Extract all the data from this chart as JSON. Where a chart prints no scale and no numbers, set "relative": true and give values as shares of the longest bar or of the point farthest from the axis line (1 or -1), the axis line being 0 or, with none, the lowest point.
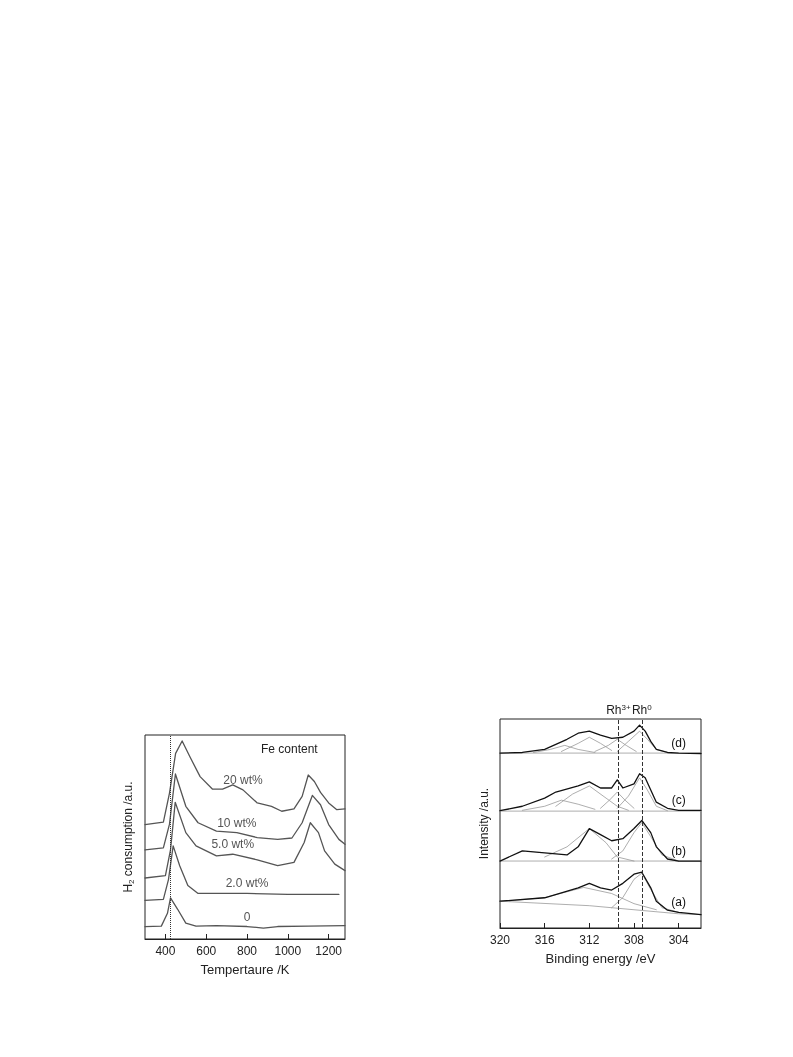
{
  "chart_data": [
    {
      "type": "line",
      "relative": true,
      "xlabel": "Tempertaure /K",
      "ylabel": "H$_{2}$ consumption /a.u.",
      "xlim": [
        300,
        1280
      ],
      "xticks": [
        400,
        600,
        800,
        1000,
        1200
      ],
      "annotations": [
        "Fe content"
      ],
      "ref_lines": [
        {
          "axis": "x",
          "value": 425,
          "line_style": "dotted"
        }
      ],
      "series": [
        {
          "name": "0",
          "color": "#555555",
          "x": [
            300,
            380,
            410,
            425,
            460,
            500,
            550,
            650,
            800,
            880,
            950,
            1100,
            1280
          ],
          "values": [
            0.062,
            0.065,
            0.13,
            0.208,
            0.15,
            0.08,
            0.065,
            0.068,
            0.063,
            0.055,
            0.063,
            0.065,
            0.068
          ]
        },
        {
          "name": "2.0 wt%",
          "color": "#555555",
          "x": [
            300,
            390,
            415,
            438,
            470,
            510,
            560,
            650,
            800,
            1000,
            1250
          ],
          "values": [
            0.195,
            0.2,
            0.3,
            0.47,
            0.37,
            0.27,
            0.23,
            0.23,
            0.23,
            0.225,
            0.225
          ]
        },
        {
          "name": "5.0 wt%",
          "color": "#555555",
          "x": [
            300,
            400,
            425,
            448,
            500,
            550,
            650,
            730,
            850,
            950,
            1030,
            1080,
            1110,
            1150,
            1180,
            1230,
            1280
          ],
          "values": [
            0.308,
            0.32,
            0.45,
            0.69,
            0.537,
            0.47,
            0.42,
            0.428,
            0.4,
            0.37,
            0.387,
            0.487,
            0.587,
            0.537,
            0.445,
            0.378,
            0.345
          ]
        },
        {
          "name": "10 wt%",
          "color": "#555555",
          "x": [
            300,
            390,
            420,
            449,
            500,
            560,
            650,
            750,
            850,
            950,
            1020,
            1070,
            1120,
            1160,
            1200,
            1250,
            1280
          ],
          "values": [
            0.45,
            0.46,
            0.58,
            0.833,
            0.67,
            0.587,
            0.545,
            0.537,
            0.512,
            0.503,
            0.51,
            0.587,
            0.725,
            0.678,
            0.578,
            0.503,
            0.478
          ]
        },
        {
          "name": "20 wt%",
          "color": "#555555",
          "x": [
            300,
            390,
            420,
            450,
            482,
            520,
            570,
            630,
            680,
            730,
            780,
            850,
            920,
            970,
            1030,
            1070,
            1100,
            1130,
            1160,
            1200,
            1240,
            1280
          ],
          "values": [
            0.578,
            0.59,
            0.737,
            0.937,
            1.0,
            0.92,
            0.82,
            0.757,
            0.757,
            0.778,
            0.753,
            0.687,
            0.67,
            0.645,
            0.657,
            0.72,
            0.828,
            0.795,
            0.74,
            0.687,
            0.653,
            0.657
          ]
        }
      ]
    },
    {
      "type": "line",
      "relative": true,
      "xlabel": "Binding energy /eV",
      "ylabel": "Intensity /a.u.",
      "xlim": [
        320,
        302
      ],
      "xticks": [
        320,
        316,
        312,
        308,
        304
      ],
      "ref_lines": [
        {
          "axis": "x",
          "value": 309.4,
          "label": "Rh$^{3+}$",
          "line_style": "dashed"
        },
        {
          "axis": "x",
          "value": 307.3,
          "label": "Rh$^{0}$",
          "line_style": "dashed"
        }
      ],
      "series": [
        {
          "name": "(a)",
          "color": "#111111",
          "x": [
            320,
            316,
            313,
            312,
            311,
            310,
            309,
            308,
            307.3,
            306.5,
            306,
            305,
            304,
            302
          ],
          "values": [
            0.132,
            0.149,
            0.198,
            0.22,
            0.198,
            0.187,
            0.22,
            0.265,
            0.275,
            0.198,
            0.132,
            0.088,
            0.077,
            0.066
          ]
        },
        {
          "color": "#999999",
          "x": [
            320,
            312,
            308,
            304,
            302
          ],
          "values": [
            0.132,
            0.11,
            0.09,
            0.07,
            0.066
          ]
        },
        {
          "color": "#999999",
          "x": [
            320,
            316,
            312.5,
            310,
            308,
            306
          ],
          "values": [
            0.13,
            0.15,
            0.2,
            0.17,
            0.12,
            0.09
          ]
        },
        {
          "color": "#999999",
          "x": [
            310,
            309,
            308,
            307.3,
            306.5,
            305.5,
            304
          ],
          "values": [
            0.1,
            0.15,
            0.24,
            0.27,
            0.19,
            0.1,
            0.077
          ]
        },
        {
          "name": "(b)",
          "color": "#111111",
          "x": [
            320,
            318,
            316,
            314,
            313,
            312,
            311,
            310,
            309,
            308,
            307.3,
            306.5,
            306,
            305,
            304,
            302
          ],
          "values": [
            0.33,
            0.38,
            0.37,
            0.36,
            0.4,
            0.49,
            0.46,
            0.43,
            0.44,
            0.49,
            0.53,
            0.47,
            0.4,
            0.34,
            0.33,
            0.33
          ]
        },
        {
          "color": "#999999",
          "x": [
            320,
            302
          ],
          "values": [
            0.33,
            0.33
          ]
        },
        {
          "color": "#999999",
          "x": [
            316,
            314,
            312,
            310.5,
            309.5,
            308
          ],
          "values": [
            0.35,
            0.4,
            0.49,
            0.42,
            0.35,
            0.33
          ]
        },
        {
          "color": "#999999",
          "x": [
            310,
            309,
            308,
            307.3,
            306.5,
            305.5,
            304
          ],
          "values": [
            0.34,
            0.38,
            0.47,
            0.52,
            0.45,
            0.36,
            0.33
          ]
        },
        {
          "name": "(c)",
          "color": "#111111",
          "x": [
            320,
            318,
            316,
            315,
            313,
            312,
            311,
            310,
            309.5,
            309,
            308,
            307.5,
            307,
            306.5,
            306,
            305,
            304,
            302
          ],
          "values": [
            0.578,
            0.6,
            0.64,
            0.67,
            0.7,
            0.72,
            0.69,
            0.69,
            0.73,
            0.69,
            0.71,
            0.76,
            0.74,
            0.68,
            0.62,
            0.59,
            0.58,
            0.58
          ]
        },
        {
          "color": "#999999",
          "x": [
            320,
            302
          ],
          "values": [
            0.576,
            0.576
          ]
        },
        {
          "color": "#999999",
          "x": [
            318,
            316,
            314.5,
            313,
            311.5
          ],
          "values": [
            0.58,
            0.6,
            0.63,
            0.61,
            0.585
          ]
        },
        {
          "color": "#999999",
          "x": [
            315,
            313.5,
            312,
            310.5,
            309.5,
            308.5
          ],
          "values": [
            0.6,
            0.66,
            0.7,
            0.64,
            0.6,
            0.58
          ]
        },
        {
          "color": "#999999",
          "x": [
            311,
            310.2,
            309.5,
            308.8,
            308
          ],
          "values": [
            0.59,
            0.63,
            0.67,
            0.63,
            0.59
          ]
        },
        {
          "color": "#999999",
          "x": [
            309.5,
            308.5,
            307.5,
            306.8,
            306,
            305
          ],
          "values": [
            0.59,
            0.65,
            0.74,
            0.68,
            0.6,
            0.578
          ]
        },
        {
          "name": "(d)",
          "color": "#111111",
          "x": [
            320,
            318,
            316,
            314,
            313,
            312,
            311,
            310,
            309,
            308,
            307.5,
            307,
            306.5,
            306,
            305,
            304,
            302
          ],
          "values": [
            0.862,
            0.865,
            0.88,
            0.93,
            0.96,
            0.97,
            0.95,
            0.935,
            0.94,
            0.97,
            1.0,
            0.97,
            0.92,
            0.88,
            0.865,
            0.862,
            0.86
          ]
        },
        {
          "color": "#999999",
          "x": [
            320,
            302
          ],
          "values": [
            0.862,
            0.862
          ]
        },
        {
          "color": "#999999",
          "x": [
            317,
            315.5,
            314.2,
            313,
            311.5
          ],
          "values": [
            0.865,
            0.88,
            0.9,
            0.88,
            0.865
          ]
        },
        {
          "color": "#999999",
          "x": [
            314.5,
            313,
            312,
            311,
            310
          ],
          "values": [
            0.87,
            0.91,
            0.94,
            0.91,
            0.875
          ]
        },
        {
          "color": "#999999",
          "x": [
            311.5,
            310.3,
            309.5,
            308.7,
            307.8
          ],
          "values": [
            0.87,
            0.9,
            0.93,
            0.9,
            0.87
          ]
        },
        {
          "color": "#999999",
          "x": [
            309.5,
            308.5,
            307.5,
            306.8,
            306,
            305
          ],
          "values": [
            0.87,
            0.92,
            0.97,
            0.93,
            0.88,
            0.865
          ]
        }
      ]
    }
  ]
}
